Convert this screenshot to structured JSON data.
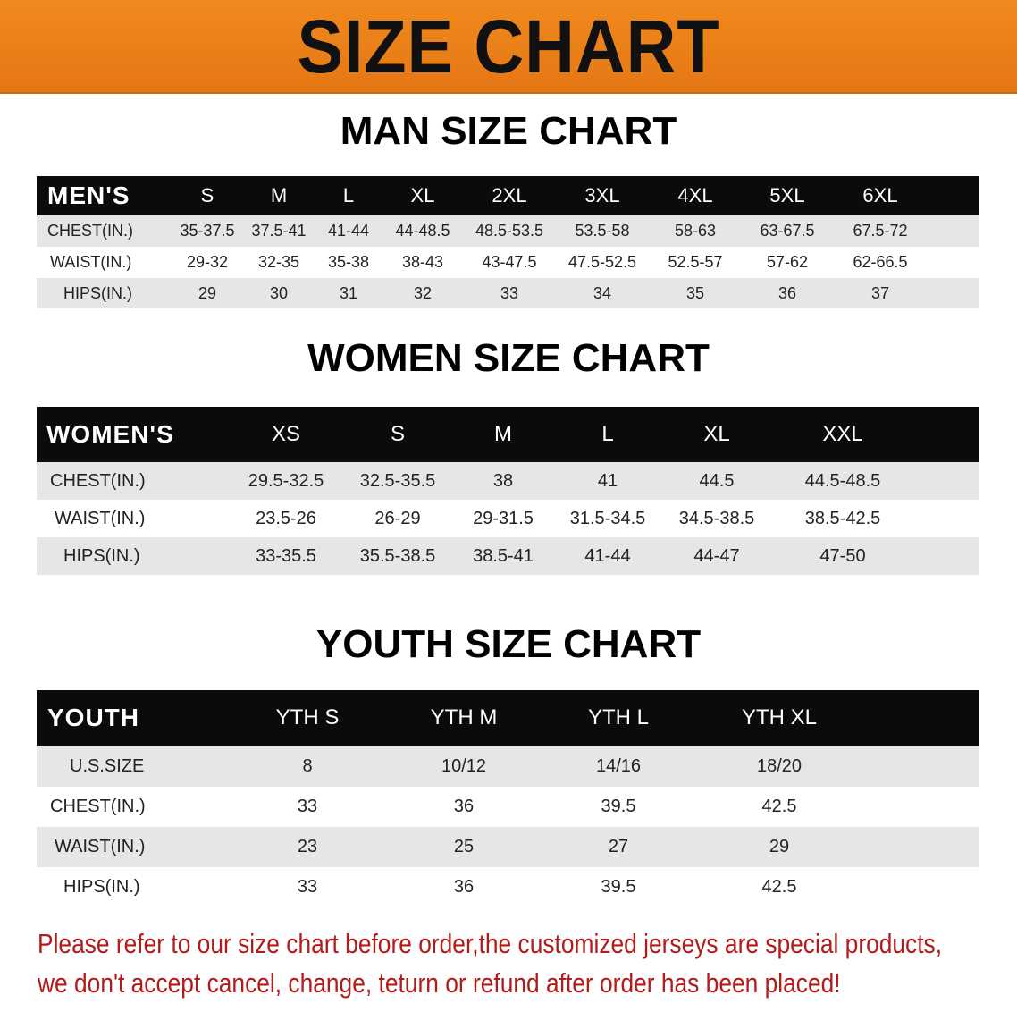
{
  "banner_title": "SIZE CHART",
  "men": {
    "title": "MAN SIZE CHART",
    "header": [
      "MEN'S",
      "S",
      "M",
      "L",
      "XL",
      "2XL",
      "3XL",
      "4XL",
      "5XL",
      "6XL"
    ],
    "rows": [
      [
        "CHEST(IN.)",
        "35-37.5",
        "37.5-41",
        "41-44",
        "44-48.5",
        "48.5-53.5",
        "53.5-58",
        "58-63",
        "63-67.5",
        "67.5-72"
      ],
      [
        "WAIST(IN.)",
        "29-32",
        "32-35",
        "35-38",
        "38-43",
        "43-47.5",
        "47.5-52.5",
        "52.5-57",
        "57-62",
        "62-66.5"
      ],
      [
        "HIPS(IN.)",
        "29",
        "30",
        "31",
        "32",
        "33",
        "34",
        "35",
        "36",
        "37"
      ]
    ]
  },
  "women": {
    "title": "WOMEN SIZE CHART",
    "header": [
      "WOMEN'S",
      "XS",
      "S",
      "M",
      "L",
      "XL",
      "XXL"
    ],
    "rows": [
      [
        "CHEST(IN.)",
        "29.5-32.5",
        "32.5-35.5",
        "38",
        "41",
        "44.5",
        "44.5-48.5"
      ],
      [
        "WAIST(IN.)",
        "23.5-26",
        "26-29",
        "29-31.5",
        "31.5-34.5",
        "34.5-38.5",
        "38.5-42.5"
      ],
      [
        "HIPS(IN.)",
        "33-35.5",
        "35.5-38.5",
        "38.5-41",
        "41-44",
        "44-47",
        "47-50"
      ]
    ]
  },
  "youth": {
    "title": "YOUTH SIZE CHART",
    "header": [
      "YOUTH",
      "YTH S",
      "YTH M",
      "YTH L",
      "YTH XL"
    ],
    "rows": [
      [
        "U.S.SIZE",
        "8",
        "10/12",
        "14/16",
        "18/20"
      ],
      [
        "CHEST(IN.)",
        "33",
        "36",
        "39.5",
        "42.5"
      ],
      [
        "WAIST(IN.)",
        "23",
        "25",
        "27",
        "29"
      ],
      [
        "HIPS(IN.)",
        "33",
        "36",
        "39.5",
        "42.5"
      ]
    ]
  },
  "notice": [
    "Please refer to our size chart before order,the customized jerseys are special products,",
    "we don't accept cancel, change, teturn or refund after order has been placed!"
  ],
  "colors": {
    "banner": "#ee8419",
    "header_row": "#0b0b0b",
    "stripe": "#e6e6e6",
    "notice": "#b31b1b"
  }
}
